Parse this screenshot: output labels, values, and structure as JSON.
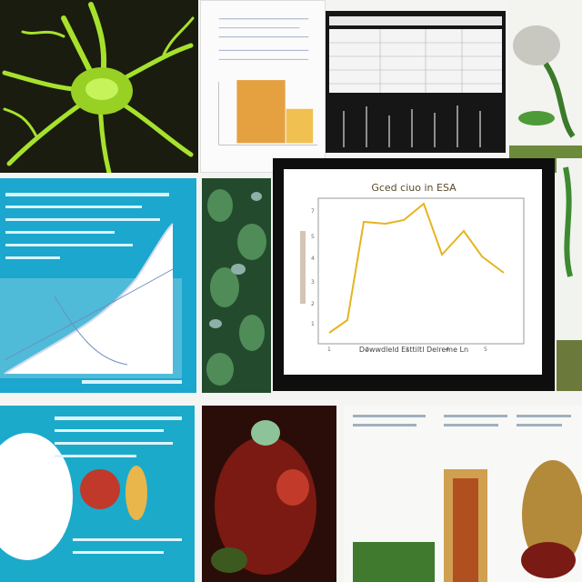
{
  "collage": {
    "center_plot": {
      "title": "Gced ciuo in ESA",
      "xlabel": "Dowwdleld Esttiltl Delreme Ln",
      "line_color": "#e6b422"
    }
  },
  "colors": {
    "neuron_green": "#9fe02a",
    "cyan_panel": "#1aa6cc",
    "plot_line": "#e6b422"
  }
}
